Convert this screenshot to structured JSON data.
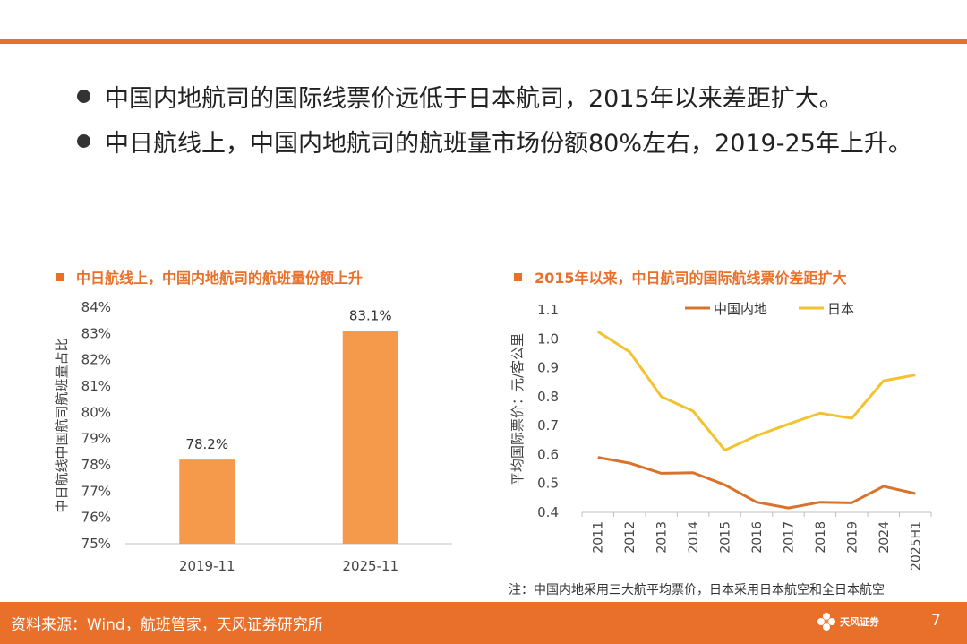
{
  "colors": {
    "accent": "#E8702A",
    "bar": "#F59A4A",
    "line_china": "#D9732B",
    "line_japan": "#F2C230",
    "axis": "#BFBFBF"
  },
  "bullets": [
    "中国内地航司的国际线票价远低于日本航司，2015年以来差距扩大。",
    "中日航线上，中国内地航司的航班量市场份额80%左右，2019-25年上升。"
  ],
  "chart_data": [
    {
      "type": "bar",
      "title": "中日航线上，中国内地航司的航班量份额上升",
      "categories": [
        "2019-11",
        "2025-11"
      ],
      "values": [
        78.2,
        83.1
      ],
      "data_labels": [
        "78.2%",
        "83.1%"
      ],
      "ylabel": "中日航线中国航司航班量占比",
      "ylim": [
        75,
        84
      ],
      "yticks": [
        "75%",
        "76%",
        "77%",
        "78%",
        "79%",
        "80%",
        "81%",
        "82%",
        "83%",
        "84%"
      ],
      "grid": false
    },
    {
      "type": "line",
      "title": "2015年以来，中日航司的国际航线票价差距扩大",
      "x": [
        "2011",
        "2012",
        "2013",
        "2014",
        "2015",
        "2016",
        "2017",
        "2018",
        "2019",
        "2024",
        "2025H1"
      ],
      "series": [
        {
          "name": "中国内地",
          "values": [
            0.59,
            0.57,
            0.535,
            0.537,
            0.495,
            0.435,
            0.415,
            0.435,
            0.433,
            0.49,
            0.465
          ]
        },
        {
          "name": "日本",
          "values": [
            1.025,
            0.955,
            0.8,
            0.75,
            0.615,
            0.665,
            0.705,
            0.743,
            0.725,
            0.855,
            0.875
          ]
        }
      ],
      "ylabel": "平均国际票价：元/客公里",
      "ylim": [
        0.4,
        1.1
      ],
      "yticks": [
        "0.4",
        "0.5",
        "0.6",
        "0.7",
        "0.8",
        "0.9",
        "1.0",
        "1.1"
      ],
      "legend": "top-center",
      "grid": false
    }
  ],
  "footnote": "注：中国内地采用三大航平均票价，日本采用日本航空和全日本航空",
  "footer": {
    "source": "资料来源：Wind，航班管家，天风证券研究所",
    "logo_text": "天风证券",
    "page": "7"
  }
}
